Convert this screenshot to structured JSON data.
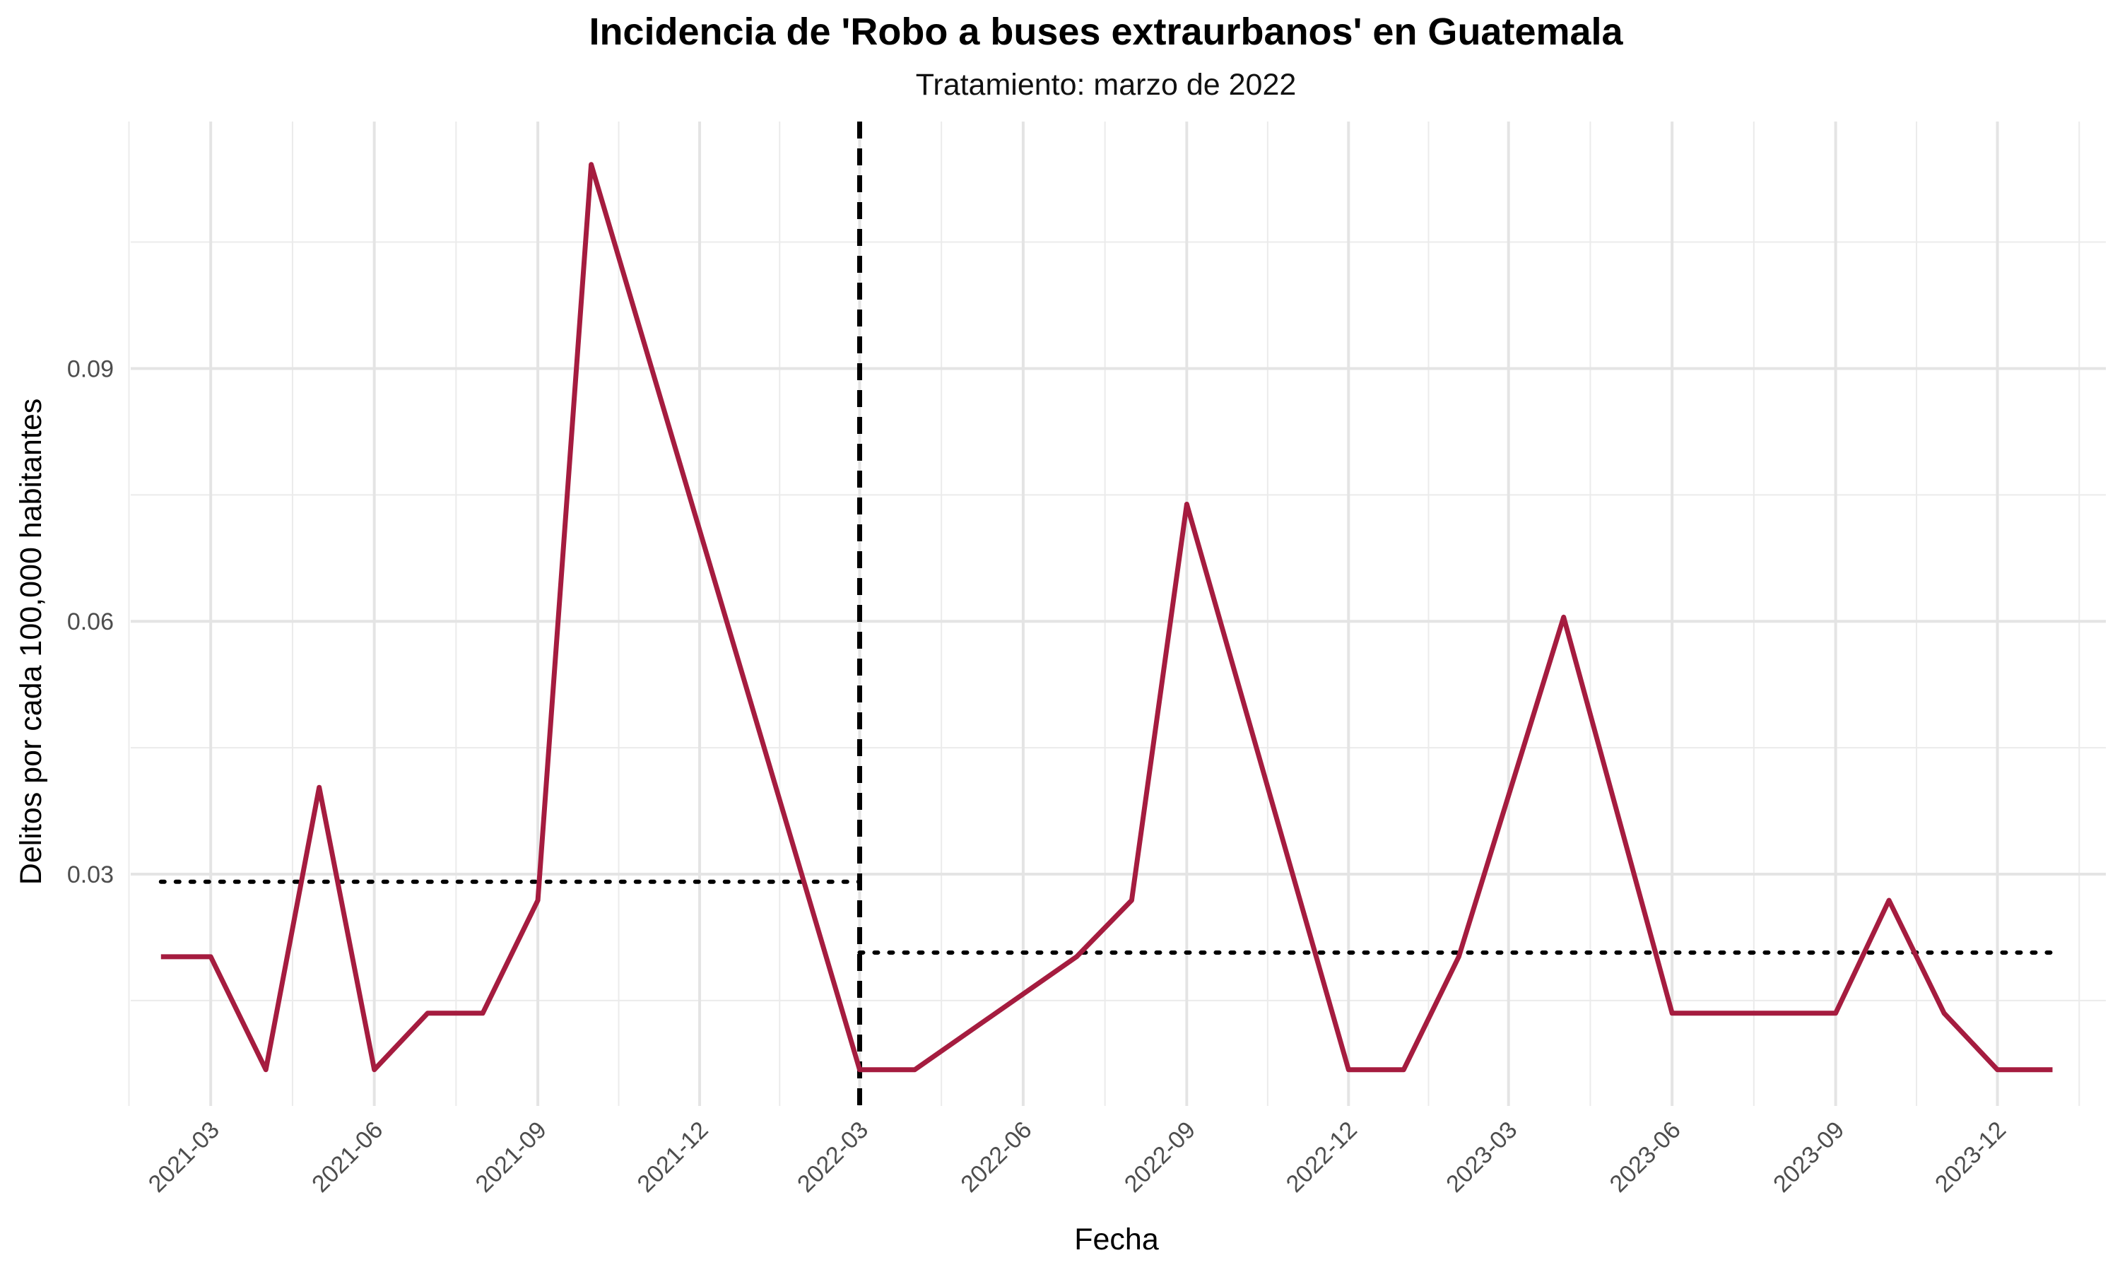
{
  "chart_data": {
    "type": "line",
    "title": "Incidencia de 'Robo a buses extraurbanos' en Guatemala",
    "subtitle": "Tratamiento: marzo de 2022",
    "xlabel": "Fecha",
    "ylabel": "Delitos por cada 100,000 habitantes",
    "x_ticks": [
      "2021-03",
      "2021-06",
      "2021-09",
      "2021-12",
      "2022-03",
      "2022-06",
      "2022-09",
      "2022-12",
      "2023-03",
      "2023-06",
      "2023-09",
      "2023-12"
    ],
    "y_ticks": [
      0.03,
      0.06,
      0.09
    ],
    "y_tick_labels": [
      "0.03",
      "0.06",
      "0.09"
    ],
    "xlim": [
      "2021-01-15",
      "2024-01-31"
    ],
    "ylim": [
      0.0025,
      0.1193
    ],
    "grid": true,
    "series": [
      {
        "color": "#A51C3F",
        "x": [
          "2021-02-01",
          "2021-03-01",
          "2021-04-01",
          "2021-05-01",
          "2021-06-01",
          "2021-07-01",
          "2021-08-01",
          "2021-09-01",
          "2021-10-01",
          "2022-03-01",
          "2022-04-01",
          "2022-07-01",
          "2022-08-01",
          "2022-09-01",
          "2022-12-01",
          "2023-01-01",
          "2023-02-01",
          "2023-04-01",
          "2023-06-01",
          "2023-09-01",
          "2023-10-01",
          "2023-11-01",
          "2023-12-01",
          "2024-01-01"
        ],
        "y": [
          0.0202,
          0.0202,
          0.0068,
          0.0403,
          0.0068,
          0.0135,
          0.0135,
          0.0269,
          0.1142,
          0.0068,
          0.0068,
          0.0202,
          0.0269,
          0.0739,
          0.0068,
          0.0068,
          0.0202,
          0.0605,
          0.0135,
          0.0135,
          0.0269,
          0.0135,
          0.0068,
          0.0068
        ]
      }
    ],
    "reference_lines": [
      {
        "type": "vertical",
        "x": "2022-03-01",
        "style": "dashed",
        "color": "#000000"
      },
      {
        "type": "horizontal",
        "y": 0.0291,
        "x_start": "2021-02-01",
        "x_end": "2022-03-01",
        "style": "dotted",
        "color": "#000000"
      },
      {
        "type": "horizontal",
        "y": 0.0207,
        "x_start": "2022-03-01",
        "x_end": "2024-01-01",
        "style": "dotted",
        "color": "#000000"
      }
    ]
  }
}
